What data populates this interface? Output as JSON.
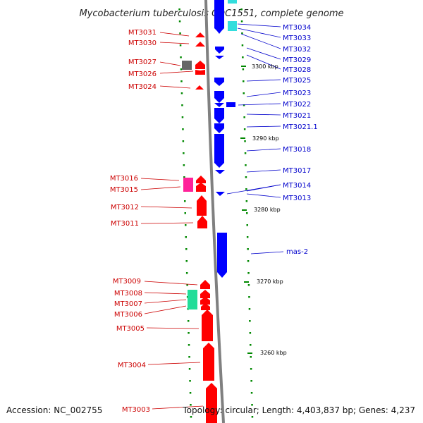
{
  "title": "Mycobacterium tuberculosis CDC1551, complete genome",
  "footer": {
    "accession": "Accession: NC_002755",
    "topology": "Topology: circular; Length: 4,403,837 bp; Genes: 4,237"
  },
  "colors": {
    "forward_gene": "#ff0000",
    "reverse_gene": "#0000ff",
    "backbone": "#808080",
    "tick": "#008800",
    "label_forward": "#cc0000",
    "label_reverse": "#0000cc",
    "cyan_feature": "#33dddd",
    "gray_feature": "#666666",
    "magenta_feature": "#ff2299",
    "teal_feature": "#22dd99"
  },
  "scale_labels": [
    "3300 kbp",
    "3290 kbp",
    "3280 kbp",
    "3270 kbp",
    "3260 kbp"
  ],
  "forward_genes": [
    "MT3031",
    "MT3030",
    "MT3027",
    "MT3026",
    "MT3024",
    "MT3016",
    "MT3015",
    "MT3012",
    "MT3011",
    "MT3009",
    "MT3008",
    "MT3007",
    "MT3006",
    "MT3005",
    "MT3004",
    "MT3003"
  ],
  "reverse_genes": [
    "MT3034",
    "MT3033",
    "MT3032",
    "MT3029",
    "MT3028",
    "MT3025",
    "MT3023",
    "MT3022",
    "MT3021",
    "MT3021.1",
    "MT3018",
    "MT3017",
    "MT3014",
    "MT3013",
    "mas-2"
  ]
}
